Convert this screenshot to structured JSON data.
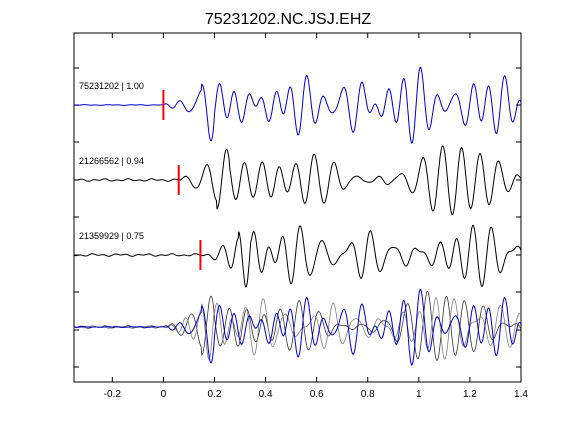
{
  "chart_data": {
    "type": "line",
    "title": "75231202.NC.JSJ.EHZ",
    "xlabel": "",
    "ylabel": "",
    "xlim": [
      -0.35,
      1.4
    ],
    "x_ticks": [
      "-0.2",
      "0",
      "0.2",
      "0.4",
      "0.6",
      "0.8",
      "1",
      "1.2",
      "1.4"
    ],
    "x_tick_values": [
      -0.2,
      0,
      0.2,
      0.4,
      0.6,
      0.8,
      1.0,
      1.2,
      1.4
    ],
    "grid": false,
    "colors": {
      "master": "#0000cc",
      "other": "#000000",
      "overlay": "#7f7f7f",
      "pick": "#ff0000"
    },
    "series": [
      {
        "name": "",
        "label": "75231202 | 1.00",
        "color": "#0000cc",
        "pick_time": 0.0,
        "onset": 0.0,
        "amplitude": 1.0,
        "seed": 1
      },
      {
        "name": "",
        "label": "21266562 | 0.94",
        "color": "#000000",
        "pick_time": 0.06,
        "onset": 0.06,
        "amplitude": 0.95,
        "seed": 2
      },
      {
        "name": "",
        "label": "21359929 | 0.75",
        "color": "#000000",
        "pick_time": 0.145,
        "onset": 0.145,
        "amplitude": 0.9,
        "seed": 3
      }
    ],
    "stack": {
      "description_free": true,
      "components": [
        "master",
        "overlay1",
        "overlay2"
      ]
    }
  }
}
